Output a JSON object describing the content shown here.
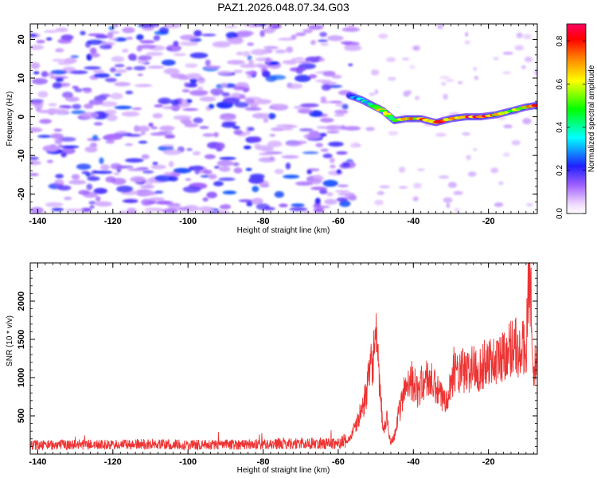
{
  "title": "PAZ1.2026.048.07.34.G03",
  "chart_data": [
    {
      "type": "heatmap",
      "name": "spectrogram",
      "xlabel": "Height of straight line (km)",
      "ylabel": "Frequency (Hz)",
      "xlim": [
        -142,
        -7
      ],
      "ylim": [
        -25,
        24
      ],
      "xticks": [
        -140,
        -120,
        -100,
        -80,
        -60,
        -40,
        -20
      ],
      "yticks": [
        -20,
        -10,
        0,
        10,
        20
      ],
      "signal_track": {
        "x": [
          -57,
          -54,
          -51,
          -48,
          -45,
          -42,
          -38,
          -34,
          -30,
          -26,
          -22,
          -18,
          -14,
          -10,
          -7
        ],
        "freq": [
          5.5,
          4.5,
          3,
          1.5,
          -1,
          -0.5,
          -0.5,
          -1.5,
          -0.5,
          0,
          0,
          0.5,
          1.5,
          2.5,
          3
        ],
        "amplitude": [
          0.25,
          0.35,
          0.45,
          0.6,
          0.5,
          0.65,
          0.7,
          0.75,
          0.7,
          0.85,
          0.85,
          0.7,
          0.6,
          0.75,
          0.7
        ]
      },
      "noise_region_x": [
        -142,
        -56
      ],
      "colorbar": {
        "label": "Normalized spectral amplitude",
        "min": 0.0,
        "max": 0.88,
        "ticks": [
          "0.0",
          "0.2",
          "0.4",
          "0.6",
          "0.8"
        ]
      }
    },
    {
      "type": "line",
      "name": "snr",
      "xlabel": "Height of straight line (km)",
      "ylabel": "SNR (10 * v/v)",
      "xlim": [
        -142,
        -7
      ],
      "ylim": [
        0,
        2500
      ],
      "xticks": [
        -140,
        -120,
        -100,
        -80,
        -60,
        -40,
        -20
      ],
      "yticks": [
        500,
        1000,
        1500,
        2000
      ],
      "color": "#ee3333",
      "series": [
        {
          "name": "SNR",
          "x": [
            -142,
            -130,
            -120,
            -110,
            -100,
            -90,
            -80,
            -70,
            -60,
            -57,
            -55,
            -53,
            -51,
            -50,
            -49,
            -48,
            -47,
            -46,
            -45,
            -44,
            -43,
            -42,
            -41,
            -40,
            -39,
            -38,
            -36,
            -34,
            -32,
            -30,
            -29,
            -28,
            -27,
            -26,
            -24,
            -22,
            -20,
            -18,
            -16,
            -14,
            -13,
            -12,
            -11,
            -10,
            -9.5,
            -9,
            -8,
            -7
          ],
          "y": [
            120,
            125,
            120,
            130,
            120,
            125,
            130,
            140,
            140,
            200,
            400,
            700,
            1200,
            1500,
            900,
            300,
            450,
            150,
            250,
            500,
            700,
            900,
            1000,
            950,
            800,
            900,
            1000,
            850,
            700,
            900,
            1150,
            1000,
            1100,
            1050,
            1150,
            1100,
            1250,
            1200,
            1300,
            1400,
            1500,
            1250,
            1400,
            1300,
            2300,
            2400,
            1000,
            1300
          ]
        }
      ]
    }
  ]
}
